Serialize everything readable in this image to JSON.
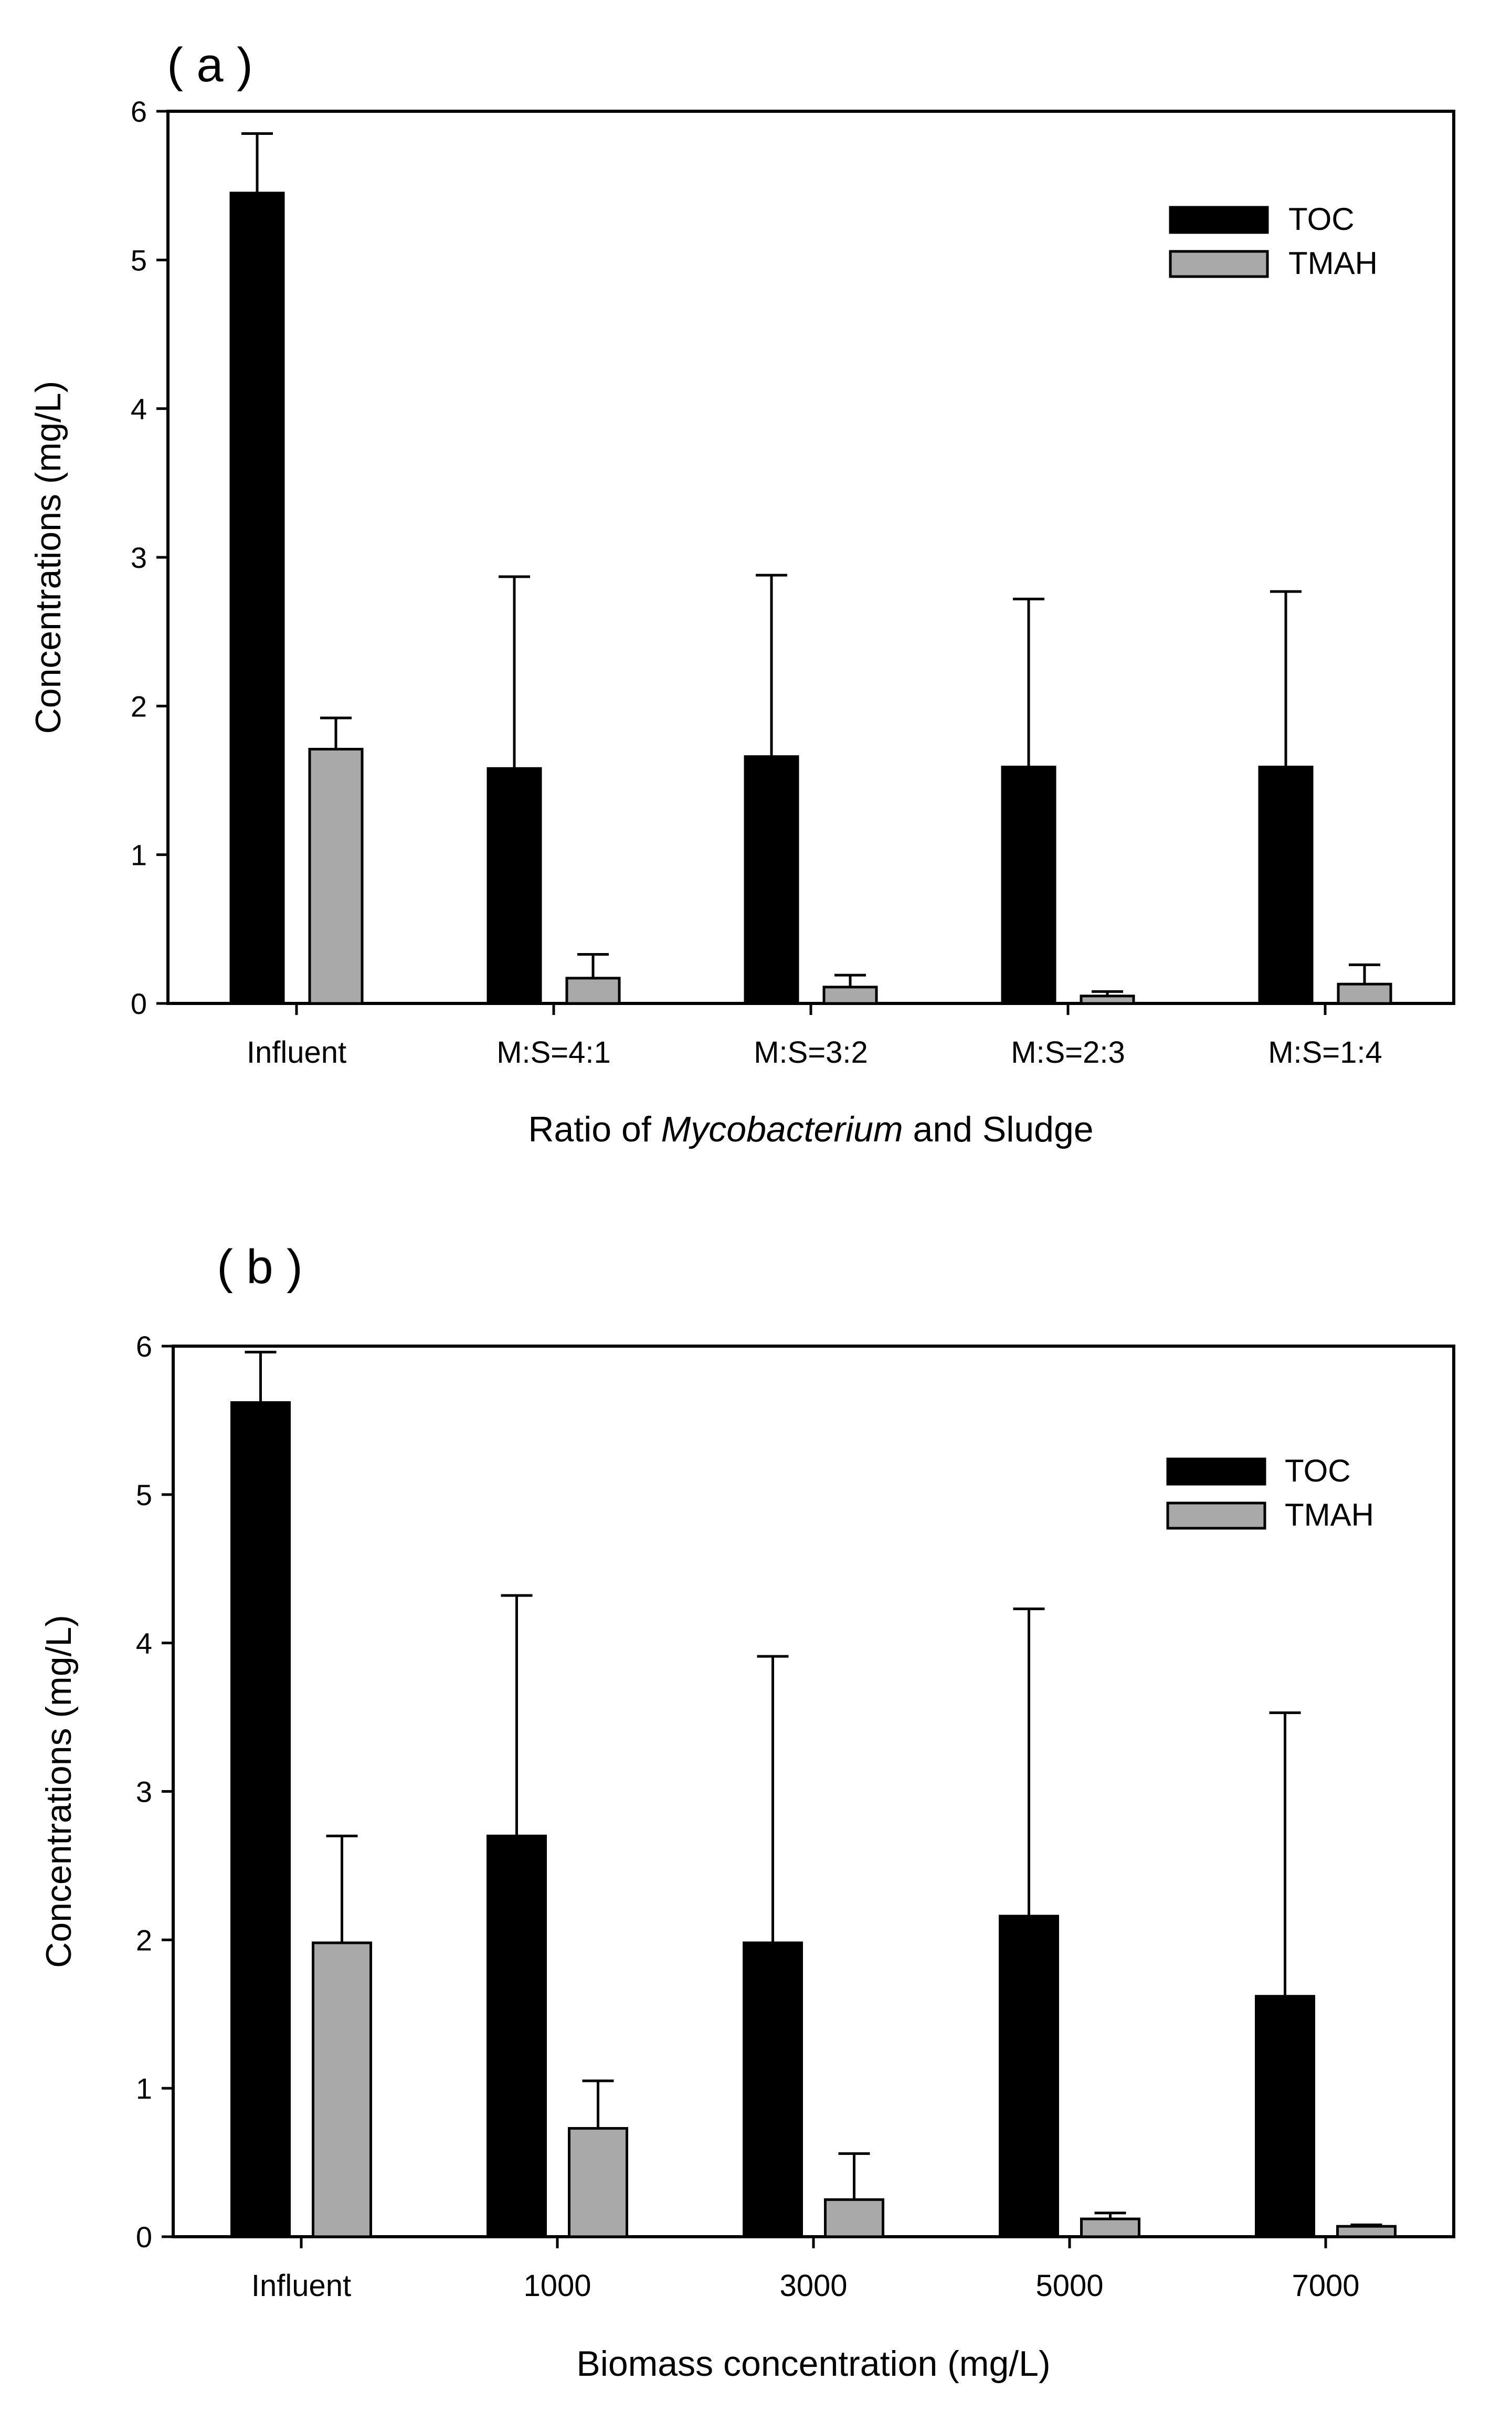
{
  "figure": {
    "panels": [
      "a",
      "b"
    ]
  },
  "chart_data": [
    {
      "type": "bar",
      "panel_label": "( a )",
      "categories": [
        "Influent",
        "M:S=4:1",
        "M:S=3:2",
        "M:S=2:3",
        "M:S=1:4"
      ],
      "series": [
        {
          "name": "TOC",
          "color": "#000000",
          "values": [
            5.45,
            1.58,
            1.66,
            1.59,
            1.59
          ],
          "errors": [
            0.4,
            1.29,
            1.22,
            1.13,
            1.18
          ]
        },
        {
          "name": "TMAH",
          "color": "#a9a9a9",
          "values": [
            1.71,
            0.17,
            0.11,
            0.05,
            0.13
          ],
          "errors": [
            0.21,
            0.16,
            0.08,
            0.03,
            0.13
          ]
        }
      ],
      "xlabel_parts": [
        "Ratio of ",
        "Mycobacterium",
        " and Sludge"
      ],
      "ylabel": "Concentrations (mg/L)",
      "ylim": [
        0,
        6
      ],
      "yticks": [
        "0",
        "1",
        "2",
        "3",
        "4",
        "5",
        "6"
      ],
      "grid": false,
      "legend_position": "top-right"
    },
    {
      "type": "bar",
      "panel_label": "( b )",
      "categories": [
        "Influent",
        "1000",
        "3000",
        "5000",
        "7000"
      ],
      "series": [
        {
          "name": "TOC",
          "color": "#000000",
          "values": [
            5.62,
            2.7,
            1.98,
            2.16,
            1.62
          ],
          "errors": [
            0.34,
            1.62,
            1.93,
            2.07,
            1.91
          ]
        },
        {
          "name": "TMAH",
          "color": "#a9a9a9",
          "values": [
            1.98,
            0.73,
            0.25,
            0.12,
            0.07
          ],
          "errors": [
            0.72,
            0.32,
            0.31,
            0.04,
            0.01
          ]
        }
      ],
      "xlabel_parts": [
        "Biomass concentration (mg/L)"
      ],
      "ylabel": "Concentrations (mg/L)",
      "ylim": [
        0,
        6
      ],
      "yticks": [
        "0",
        "1",
        "2",
        "3",
        "4",
        "5",
        "6"
      ],
      "grid": false,
      "legend_position": "top-right"
    }
  ]
}
